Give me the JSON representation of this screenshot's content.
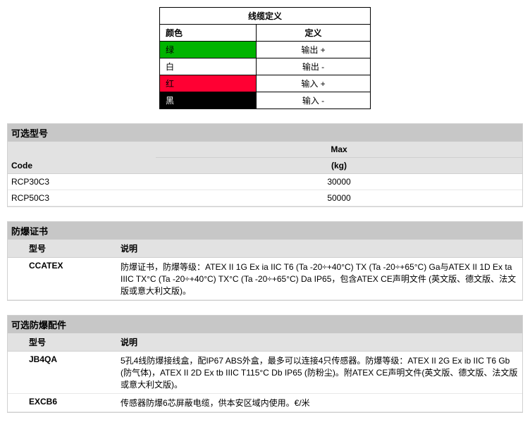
{
  "cable": {
    "title": "线缆定义",
    "header_color": "颜色",
    "header_def": "定义",
    "rows": [
      {
        "color_label": "绿",
        "bg": "#00b400",
        "fg": "#000000",
        "def": "输出 +"
      },
      {
        "color_label": "白",
        "bg": "#ffffff",
        "fg": "#000000",
        "def": "输出 -"
      },
      {
        "color_label": "红",
        "bg": "#ff0033",
        "fg": "#000000",
        "def": "输入 +"
      },
      {
        "color_label": "黑",
        "bg": "#000000",
        "fg": "#ffffff",
        "def": "输入 -"
      }
    ]
  },
  "models": {
    "title": "可选型号",
    "col_code": "Code",
    "col_max1": "Max",
    "col_max2": "(kg)",
    "rows": [
      {
        "code": "RCP30C3",
        "max": "30000"
      },
      {
        "code": "RCP50C3",
        "max": "50000"
      }
    ]
  },
  "cert": {
    "title": "防爆证书",
    "col_model": "型号",
    "col_desc": "说明",
    "rows": [
      {
        "model": "CCATEX",
        "desc": "防爆证书，防爆等级：ATEX II 1G Ex ia IIC T6 (Ta -20÷+40°C) TX (Ta -20÷+65°C) Ga与ATEX II 1D Ex ta IIIC TX°C (Ta -20÷+40°C) TX°C (Ta -20÷+65°C) Da IP65，包含ATEX CE声明文件 (英文版、德文版、法文版或意大利文版)。"
      }
    ]
  },
  "acc": {
    "title": "可选防爆配件",
    "col_model": "型号",
    "col_desc": "说明",
    "rows": [
      {
        "model": "JB4QA",
        "desc": "5孔4线防爆接线盒，配IP67 ABS外盒，最多可以连接4只传感器。防爆等级：ATEX II 2G Ex ib IIC T6 Gb (防气体)，ATEX II 2D Ex tb IIIC T115°C Db IP65 (防粉尘)。附ATEX CE声明文件(英文版、德文版、法文版或意大利文版)。"
      },
      {
        "model": "EXCB6",
        "desc": "传感器防爆6芯屏蔽电缆，供本安区域内使用。€/米"
      }
    ]
  }
}
